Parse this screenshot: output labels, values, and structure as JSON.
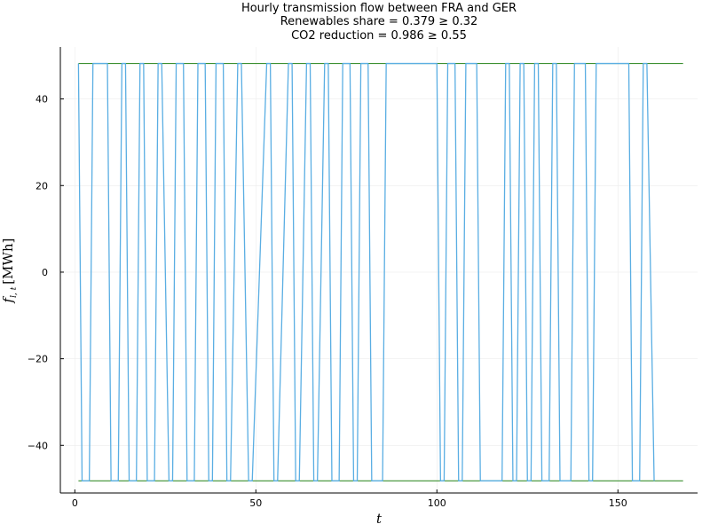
{
  "chart_data": {
    "type": "line",
    "title_lines": [
      "Hourly transmission flow between FRA and GER",
      "Renewables share = 0.379 ≥ 0.32",
      "CO2 reduction = 0.986 ≥ 0.55"
    ],
    "xlabel": "t",
    "ylabel_symbol": "f",
    "ylabel_subscript": "l, t",
    "ylabel_unit": "[MWh]",
    "xlim": [
      -4,
      172
    ],
    "ylim": [
      -51,
      52
    ],
    "xticks": [
      0,
      50,
      100,
      150
    ],
    "yticks": [
      -40,
      -20,
      0,
      20,
      40
    ],
    "xtick_labels": [
      "0",
      "50",
      "100",
      "150"
    ],
    "ytick_labels": [
      "−40",
      "−20",
      "0",
      "20",
      "40"
    ],
    "grid": true,
    "legend": "none",
    "colors": {
      "flow": "#5aaee3",
      "bounds": "#3a8f2f",
      "grid": "#ececec",
      "axis": "#000000"
    },
    "bounds": [
      {
        "x": [
          1,
          168
        ],
        "y": [
          48.2,
          48.2
        ]
      },
      {
        "x": [
          1,
          168
        ],
        "y": [
          -48.2,
          -48.2
        ]
      }
    ],
    "series": [
      {
        "x": [
          1,
          2,
          4,
          5,
          9,
          10,
          12,
          13,
          14,
          15,
          17,
          18,
          19,
          20,
          22,
          23,
          24,
          26,
          27,
          28,
          30,
          31,
          33,
          34,
          36,
          37,
          38,
          39,
          41,
          42,
          43,
          45,
          46,
          48,
          49,
          53,
          54,
          55,
          56,
          59,
          60,
          61,
          62,
          64,
          65,
          66,
          67,
          69,
          70,
          71,
          73,
          74,
          76,
          77,
          78,
          79,
          81,
          82,
          85,
          86,
          100,
          101,
          102,
          103,
          105,
          106,
          107,
          108,
          111,
          112,
          118,
          119,
          120,
          121,
          122,
          123,
          124,
          125,
          126,
          127,
          128,
          129,
          131,
          132,
          133,
          134,
          137,
          138,
          141,
          142,
          143,
          144,
          153,
          154,
          156,
          157,
          158,
          160
        ],
        "y": [
          48.2,
          -48.2,
          -48.2,
          48.2,
          48.2,
          -48.2,
          -48.2,
          48.2,
          48.2,
          -48.2,
          -48.2,
          48.2,
          48.2,
          -48.2,
          -48.2,
          48.2,
          48.2,
          -48.2,
          -48.2,
          48.2,
          48.2,
          -48.2,
          -48.2,
          48.2,
          48.2,
          -48.2,
          -48.2,
          48.2,
          48.2,
          -48.2,
          -48.2,
          48.2,
          48.2,
          -48.2,
          -48.2,
          48.2,
          48.2,
          -48.2,
          -48.2,
          48.2,
          48.2,
          -48.2,
          -48.2,
          48.2,
          48.2,
          -48.2,
          -48.2,
          48.2,
          48.2,
          -48.2,
          -48.2,
          48.2,
          48.2,
          -48.2,
          -48.2,
          48.2,
          48.2,
          -48.2,
          -48.2,
          48.2,
          48.2,
          -48.2,
          -48.2,
          48.2,
          48.2,
          -48.2,
          -48.2,
          48.2,
          48.2,
          -48.2,
          -48.2,
          48.2,
          48.2,
          -48.2,
          -48.2,
          48.2,
          48.2,
          -48.2,
          -48.2,
          48.2,
          48.2,
          -48.2,
          -48.2,
          48.2,
          48.2,
          -48.2,
          -48.2,
          48.2,
          48.2,
          -48.2,
          -48.2,
          48.2,
          48.2,
          -48.2,
          -48.2,
          48.2,
          48.2,
          -48.2
        ]
      }
    ]
  }
}
